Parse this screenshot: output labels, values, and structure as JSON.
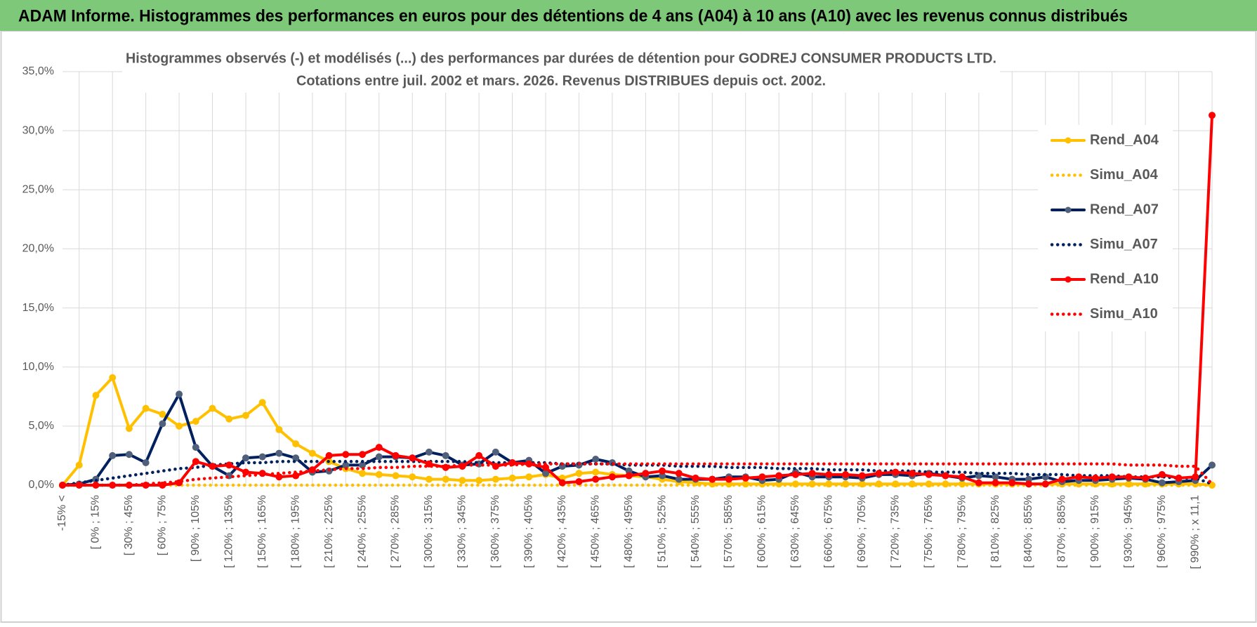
{
  "header": {
    "title": "ADAM Informe. Histogrammes des performances en euros pour des détentions de 4 ans (A04) à 10 ans (A10) avec les revenus connus distribués"
  },
  "chart_data": {
    "type": "line",
    "title": "Histogrammes observés (-) et modélisés (...) des performances par durées de détention pour GODREJ CONSUMER PRODUCTS LTD.",
    "subtitle": "Cotations entre juil. 2002 et mars. 2026. Revenus DISTRIBUES depuis oct. 2002.",
    "categories": [
      "-15% <",
      null,
      "[ 0% ; 15%",
      null,
      "[ 30% ; 45%",
      null,
      "[ 60% ; 75%",
      null,
      "[ 90% ; 105%",
      null,
      "[ 120% ; 135%",
      null,
      "[ 150% ; 165%",
      null,
      "[ 180% ; 195%",
      null,
      "[ 210% ; 225%",
      null,
      "[ 240% ; 255%",
      null,
      "[ 270% ; 285%",
      null,
      "[ 300% ; 315%",
      null,
      "[ 330% ; 345%",
      null,
      "[ 360% ; 375%",
      null,
      "[ 390% ; 405%",
      null,
      "[ 420% ; 435%",
      null,
      "[ 450% ; 465%",
      null,
      "[ 480% ; 495%",
      null,
      "[ 510% ; 525%",
      null,
      "[ 540% ; 555%",
      null,
      "[ 570% ; 585%",
      null,
      "[ 600% ; 615%",
      null,
      "[ 630% ; 645%",
      null,
      "[ 660% ; 675%",
      null,
      "[ 690% ; 705%",
      null,
      "[ 720% ; 735%",
      null,
      "[ 750% ; 765%",
      null,
      "[ 780% ; 795%",
      null,
      "[ 810% ; 825%",
      null,
      "[ 840% ; 855%",
      null,
      "[ 870% ; 885%",
      null,
      "[ 900% ; 915%",
      null,
      "[ 930% ; 945%",
      null,
      "[ 960% ; 975%",
      null,
      "[ 990% ; x 11,1",
      null
    ],
    "ylim": [
      0,
      35
    ],
    "yticks": [
      {
        "value": 0,
        "label": "0,0%"
      },
      {
        "value": 5,
        "label": "5,0%"
      },
      {
        "value": 10,
        "label": "10,0%"
      },
      {
        "value": 15,
        "label": "15,0%"
      },
      {
        "value": 20,
        "label": "20,0%"
      },
      {
        "value": 25,
        "label": "25,0%"
      },
      {
        "value": 30,
        "label": "30,0%"
      },
      {
        "value": 35,
        "label": "35,0%"
      }
    ],
    "grid": true,
    "legend": "right",
    "series": [
      {
        "name": "Rend_A04",
        "color": "#FFC000",
        "line_style": "solid",
        "markers": true,
        "values": [
          0,
          1.7,
          7.6,
          9.1,
          4.8,
          6.5,
          6.0,
          5.0,
          5.4,
          6.5,
          5.6,
          5.9,
          7.0,
          4.7,
          3.5,
          2.7,
          2.0,
          1.4,
          1.0,
          0.9,
          0.8,
          0.7,
          0.5,
          0.5,
          0.4,
          0.4,
          0.5,
          0.6,
          0.7,
          0.9,
          0.6,
          1.0,
          1.1,
          0.9,
          0.8,
          0.7,
          0.5,
          0.3,
          0.2,
          0.1,
          0.1,
          0.1,
          0.1,
          0.1,
          0.1,
          0.1,
          0.1,
          0.1,
          0.1,
          0.1,
          0.1,
          0.1,
          0.1,
          0.1,
          0.1,
          0.1,
          0.1,
          0.1,
          0.1,
          0.1,
          0.1,
          0.1,
          0.1,
          0.1,
          0.1,
          0.1,
          0.1,
          0.1,
          0.1,
          0
        ]
      },
      {
        "name": "Simu_A04",
        "color": "#FFC000",
        "line_style": "dotted",
        "markers": false,
        "values": [
          0,
          0,
          0,
          0,
          0,
          0,
          0,
          0,
          0,
          0,
          0,
          0,
          0,
          0,
          0,
          0,
          0,
          0,
          0,
          0,
          0,
          0,
          0,
          0,
          0,
          0,
          0,
          0,
          0,
          0,
          0,
          0,
          0,
          0,
          0,
          0,
          0,
          0,
          0,
          0,
          0,
          0,
          0,
          0,
          0,
          0,
          0,
          0,
          0,
          0,
          0,
          0,
          0,
          0,
          0,
          0,
          0,
          0,
          0,
          0,
          0,
          0,
          0,
          0,
          0,
          0,
          0,
          0,
          0,
          0
        ]
      },
      {
        "name": "Rend_A07",
        "color": "#002060",
        "line_style": "solid",
        "markers": true,
        "marker_color": "#50607a",
        "values": [
          0,
          0.1,
          0.5,
          2.5,
          2.6,
          1.9,
          5.2,
          7.7,
          3.2,
          1.6,
          0.8,
          2.3,
          2.4,
          2.7,
          2.3,
          1.1,
          1.2,
          1.7,
          1.7,
          2.4,
          2.4,
          2.3,
          2.8,
          2.5,
          1.7,
          1.8,
          2.8,
          1.9,
          2.1,
          1.0,
          1.6,
          1.7,
          2.2,
          1.9,
          1.2,
          0.7,
          0.8,
          0.5,
          0.5,
          0.5,
          0.7,
          0.7,
          0.4,
          0.5,
          1.1,
          0.7,
          0.7,
          0.7,
          0.6,
          0.9,
          0.9,
          0.8,
          1.0,
          0.8,
          0.6,
          0.8,
          0.7,
          0.5,
          0.5,
          0.7,
          0.3,
          0.4,
          0.4,
          0.5,
          0.6,
          0.5,
          0.2,
          0.3,
          0.4,
          1.7
        ]
      },
      {
        "name": "Simu_A07",
        "color": "#002060",
        "line_style": "dotted",
        "markers": false,
        "values": [
          0,
          0.2,
          0.4,
          0.6,
          0.8,
          1.0,
          1.2,
          1.4,
          1.5,
          1.7,
          1.8,
          1.9,
          1.9,
          2.0,
          2.0,
          2.0,
          2.0,
          2.0,
          2.0,
          2.0,
          2.0,
          2.0,
          2.0,
          2.0,
          2.0,
          1.9,
          1.9,
          1.9,
          1.9,
          1.9,
          1.8,
          1.8,
          1.8,
          1.8,
          1.7,
          1.7,
          1.7,
          1.6,
          1.6,
          1.6,
          1.5,
          1.5,
          1.5,
          1.4,
          1.4,
          1.4,
          1.3,
          1.3,
          1.3,
          1.2,
          1.2,
          1.2,
          1.1,
          1.1,
          1.1,
          1.0,
          1.0,
          1.0,
          0.9,
          0.9,
          0.9,
          0.8,
          0.8,
          0.8,
          0.7,
          0.7,
          0.7,
          0.6,
          0.6,
          0.1
        ]
      },
      {
        "name": "Rend_A10",
        "color": "#FF0000",
        "line_style": "solid",
        "markers": true,
        "values": [
          0,
          0,
          0,
          0,
          0,
          0,
          0,
          0.2,
          2.0,
          1.6,
          1.7,
          1.1,
          1.0,
          0.7,
          0.8,
          1.3,
          2.5,
          2.6,
          2.6,
          3.2,
          2.5,
          2.3,
          1.8,
          1.5,
          1.6,
          2.5,
          1.6,
          1.9,
          1.8,
          1.5,
          0.2,
          0.3,
          0.5,
          0.7,
          0.8,
          1.0,
          1.2,
          1.0,
          0.6,
          0.5,
          0.5,
          0.6,
          0.7,
          0.8,
          0.9,
          1.0,
          0.9,
          0.9,
          0.8,
          1.0,
          1.1,
          1.0,
          0.9,
          0.8,
          0.7,
          0.2,
          0.2,
          0.2,
          0.1,
          0.1,
          0.5,
          0.7,
          0.6,
          0.7,
          0.7,
          0.6,
          0.9,
          0.6,
          0.7,
          31.3
        ]
      },
      {
        "name": "Simu_A10",
        "color": "#FF0000",
        "line_style": "dotted",
        "markers": false,
        "values": [
          0,
          0,
          0,
          0,
          0,
          0.1,
          0.2,
          0.3,
          0.5,
          0.6,
          0.7,
          0.8,
          0.9,
          1.0,
          1.1,
          1.2,
          1.3,
          1.4,
          1.4,
          1.5,
          1.5,
          1.6,
          1.6,
          1.6,
          1.7,
          1.7,
          1.7,
          1.7,
          1.8,
          1.8,
          1.8,
          1.8,
          1.8,
          1.8,
          1.8,
          1.8,
          1.8,
          1.8,
          1.8,
          1.8,
          1.8,
          1.8,
          1.8,
          1.8,
          1.8,
          1.8,
          1.8,
          1.8,
          1.8,
          1.8,
          1.8,
          1.8,
          1.8,
          1.8,
          1.8,
          1.8,
          1.8,
          1.8,
          1.8,
          1.8,
          1.8,
          1.8,
          1.8,
          1.8,
          1.7,
          1.7,
          1.7,
          1.6,
          1.6,
          0.1
        ]
      }
    ]
  }
}
